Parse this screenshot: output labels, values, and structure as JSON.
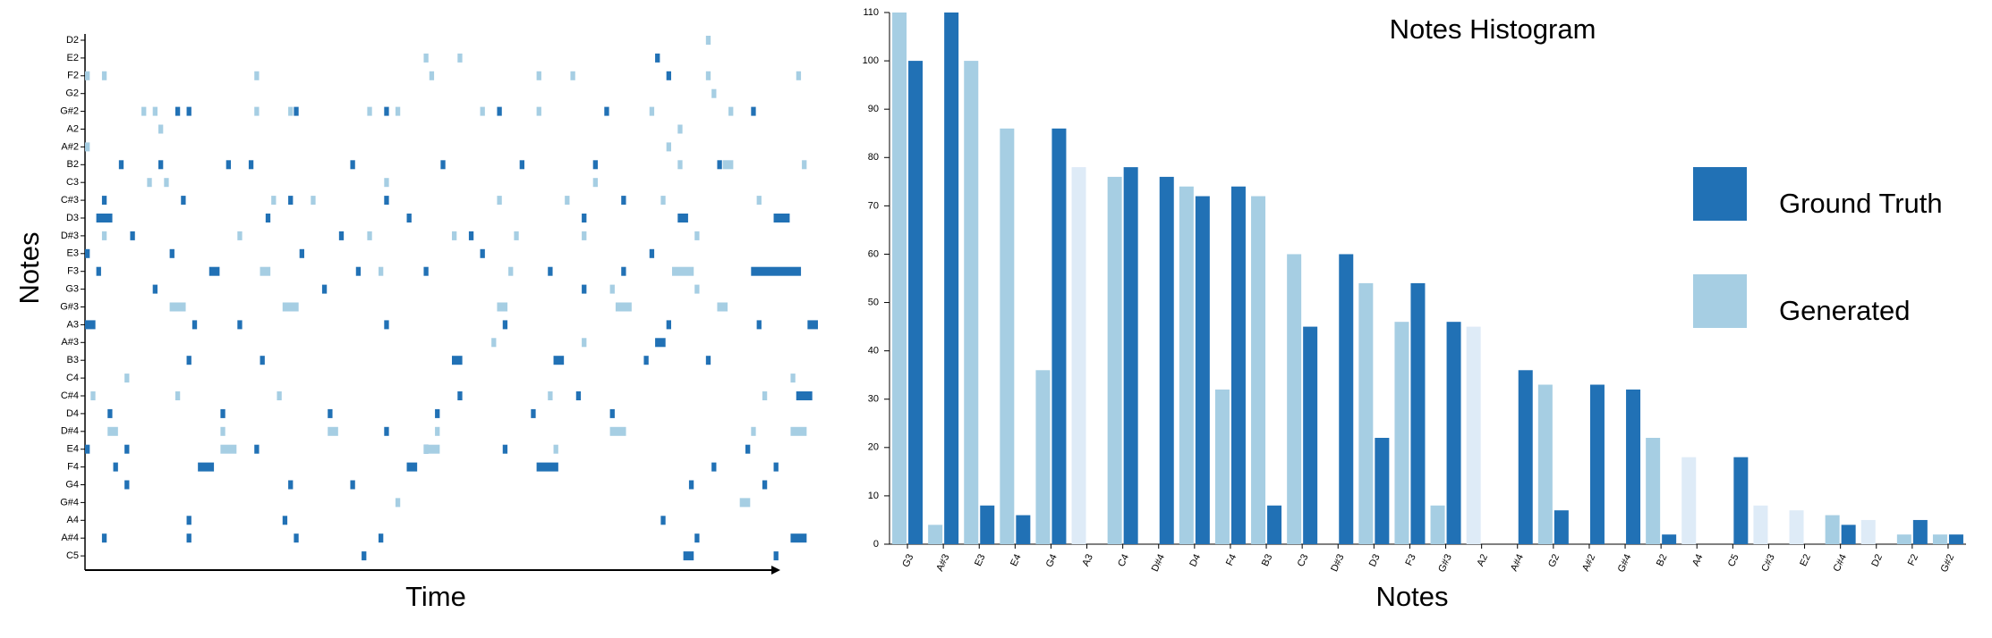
{
  "chart_data": [
    {
      "type": "piano-roll",
      "x_label": "Time",
      "y_label": "Notes",
      "rows": [
        "D2",
        "E2",
        "F2",
        "G2",
        "G#2",
        "A2",
        "A#2",
        "B2",
        "C3",
        "C#3",
        "D3",
        "D#3",
        "E3",
        "F3",
        "G3",
        "G#3",
        "A3",
        "A#3",
        "B3",
        "C4",
        "C#4",
        "D4",
        "D#4",
        "E4",
        "F4",
        "G4",
        "G#4",
        "A4",
        "A#4",
        "C5"
      ],
      "xlim": [
        0,
        130
      ],
      "series": [
        {
          "name": "Ground Truth",
          "color": "#2171b5",
          "notes": [
            1,
            2,
            4,
            4,
            4,
            4,
            4,
            4,
            4,
            7,
            7,
            7,
            7,
            7,
            7,
            7,
            7,
            7,
            9,
            9,
            9,
            9,
            9,
            10,
            10,
            10,
            10,
            10,
            10,
            11,
            11,
            11,
            12,
            12,
            12,
            12,
            12,
            13,
            13,
            13,
            13,
            13,
            13,
            13,
            14,
            14,
            14,
            16,
            16,
            16,
            16,
            16,
            16,
            16,
            16,
            17,
            18,
            18,
            18,
            18,
            18,
            18,
            20,
            20,
            20,
            21,
            21,
            21,
            21,
            21,
            21,
            22,
            23,
            23,
            23,
            23,
            23,
            23,
            24,
            24,
            24,
            24,
            24,
            24,
            25,
            25,
            25,
            25,
            25,
            27,
            27,
            27,
            28,
            28,
            28,
            28,
            28,
            28,
            29,
            29,
            29
          ],
          "starts": [
            101,
            103,
            16,
            18,
            37,
            53,
            73,
            92,
            118,
            6,
            13,
            25,
            29,
            47,
            63,
            77,
            90,
            112,
            3,
            17,
            36,
            53,
            95,
            2,
            32,
            57,
            88,
            105,
            122,
            8,
            45,
            68,
            0,
            15,
            38,
            70,
            100,
            2,
            22,
            48,
            60,
            82,
            95,
            118,
            12,
            42,
            88,
            0,
            19,
            27,
            53,
            74,
            103,
            119,
            128,
            101,
            18,
            31,
            65,
            83,
            99,
            110,
            66,
            87,
            126,
            4,
            24,
            43,
            62,
            79,
            93,
            53,
            0,
            7,
            30,
            60,
            74,
            117,
            5,
            20,
            57,
            80,
            111,
            122,
            7,
            36,
            47,
            107,
            120,
            18,
            35,
            102,
            3,
            18,
            37,
            52,
            108,
            125,
            49,
            106,
            122
          ],
          "durations": [
            1,
            1,
            1,
            1,
            1,
            1,
            1,
            1,
            1,
            1,
            1,
            1,
            1,
            1,
            1,
            1,
            1,
            1,
            1,
            1,
            1,
            1,
            1,
            3,
            1,
            1,
            1,
            2,
            3,
            1,
            1,
            1,
            1,
            1,
            1,
            1,
            1,
            1,
            2,
            1,
            1,
            1,
            1,
            9,
            1,
            1,
            1,
            2,
            1,
            1,
            1,
            1,
            1,
            1,
            2,
            2,
            1,
            1,
            2,
            2,
            1,
            1,
            1,
            1,
            3,
            1,
            1,
            1,
            1,
            1,
            1,
            1,
            1,
            1,
            1,
            1,
            1,
            1,
            1,
            3,
            2,
            4,
            1,
            1,
            1,
            1,
            1,
            1,
            1,
            1,
            1,
            1,
            1,
            1,
            1,
            1,
            1,
            3,
            1,
            2,
            1
          ]
        },
        {
          "name": "Generated",
          "color": "#a6cee3",
          "notes": [
            0,
            1,
            1,
            2,
            2,
            2,
            2,
            2,
            2,
            2,
            2,
            3,
            4,
            4,
            4,
            4,
            4,
            4,
            4,
            4,
            4,
            4,
            5,
            5,
            6,
            6,
            7,
            7,
            7,
            8,
            8,
            8,
            8,
            9,
            9,
            9,
            9,
            9,
            9,
            11,
            11,
            11,
            11,
            11,
            11,
            11,
            13,
            13,
            13,
            13,
            14,
            14,
            15,
            15,
            15,
            15,
            15,
            17,
            17,
            19,
            19,
            20,
            20,
            20,
            20,
            20,
            22,
            22,
            22,
            22,
            22,
            22,
            22,
            23,
            23,
            23,
            26,
            26
          ],
          "starts": [
            110,
            66,
            60,
            0,
            3,
            30,
            61,
            80,
            86,
            110,
            126,
            111,
            10,
            12,
            30,
            36,
            50,
            55,
            70,
            80,
            100,
            114,
            13,
            105,
            0,
            103,
            105,
            113,
            127,
            11,
            14,
            53,
            90,
            33,
            40,
            73,
            85,
            102,
            119,
            3,
            27,
            50,
            65,
            76,
            88,
            108,
            31,
            52,
            75,
            104,
            93,
            108,
            15,
            35,
            73,
            94,
            112,
            72,
            88,
            7,
            125,
            1,
            16,
            34,
            82,
            120,
            4,
            24,
            43,
            62,
            93,
            118,
            125,
            24,
            60,
            83,
            55,
            116
          ],
          "durations": [
            1,
            1,
            1,
            1,
            1,
            1,
            1,
            1,
            1,
            1,
            1,
            1,
            1,
            1,
            1,
            1,
            1,
            1,
            1,
            1,
            1,
            1,
            1,
            1,
            1,
            1,
            1,
            2,
            1,
            1,
            1,
            1,
            1,
            1,
            1,
            1,
            1,
            1,
            1,
            1,
            1,
            1,
            1,
            1,
            1,
            1,
            2,
            1,
            1,
            4,
            1,
            1,
            3,
            3,
            2,
            3,
            2,
            1,
            1,
            1,
            1,
            1,
            1,
            1,
            1,
            1,
            2,
            1,
            2,
            1,
            3,
            1,
            3,
            3,
            3,
            1,
            1,
            2
          ]
        }
      ]
    },
    {
      "type": "bar",
      "title": "Notes Histogram",
      "x_label": "Notes",
      "categories": [
        "G3",
        "A#3",
        "E3",
        "E4",
        "G4",
        "A3",
        "C4",
        "D#4",
        "D4",
        "F4",
        "B3",
        "C3",
        "D#3",
        "D3",
        "F3",
        "G#3",
        "A2",
        "A#4",
        "G2",
        "A#2",
        "G#4",
        "B2",
        "A4",
        "C5",
        "C#3",
        "E2",
        "C#4",
        "D2",
        "F2",
        "G#2"
      ],
      "series": [
        {
          "name": "Generated",
          "color": "#a6cee3",
          "colors": [
            "#a6cee3",
            "#a6cee3",
            "#a6cee3",
            "#a6cee3",
            "#a6cee3",
            "#deebf7",
            "#a6cee3",
            "#a6cee3",
            "#a6cee3",
            "#a6cee3",
            "#a6cee3",
            "#a6cee3",
            "#a6cee3",
            "#a6cee3",
            "#a6cee3",
            "#a6cee3",
            "#deebf7",
            "#a6cee3",
            "#a6cee3",
            "#a6cee3",
            "#a6cee3",
            "#a6cee3",
            "#deebf7",
            "#a6cee3",
            "#deebf7",
            "#deebf7",
            "#a6cee3",
            "#deebf7",
            "#a6cee3",
            "#a6cee3"
          ],
          "values": [
            110,
            4,
            100,
            86,
            36,
            78,
            76,
            null,
            74,
            32,
            72,
            60,
            null,
            54,
            46,
            8,
            45,
            null,
            33,
            null,
            null,
            22,
            18,
            null,
            8,
            7,
            6,
            5,
            2,
            2
          ]
        },
        {
          "name": "Ground Truth",
          "color": "#2171b5",
          "values": [
            100,
            110,
            8,
            6,
            86,
            null,
            78,
            76,
            72,
            74,
            8,
            45,
            60,
            22,
            54,
            46,
            null,
            36,
            7,
            33,
            32,
            2,
            null,
            18,
            null,
            null,
            4,
            null,
            5,
            2
          ]
        }
      ],
      "ylim": [
        0,
        110
      ],
      "yticks": [
        0,
        10,
        20,
        30,
        40,
        50,
        60,
        70,
        80,
        90,
        100,
        110
      ],
      "legend": "right"
    }
  ]
}
